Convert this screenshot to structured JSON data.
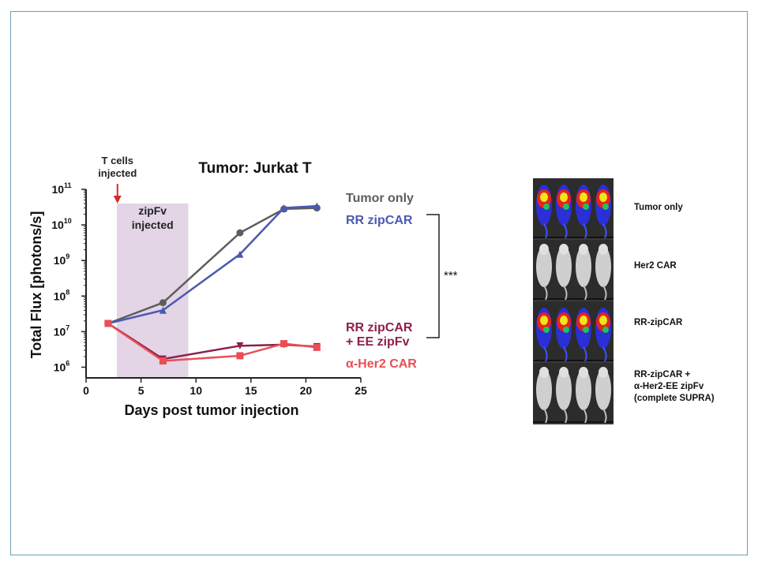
{
  "chart_data": {
    "type": "line",
    "title": "Tumor: Jurkat T",
    "xlabel": "Days post tumor injection",
    "ylabel": "Total Flux [photons/s]",
    "xlim": [
      0,
      25
    ],
    "ylim_log10": [
      5.7,
      11
    ],
    "yscale": "log",
    "x_ticks": [
      "0",
      "5",
      "10",
      "15",
      "20",
      "25"
    ],
    "y_ticks": [
      {
        "base": "10",
        "exp": "11",
        "log": 11
      },
      {
        "base": "10",
        "exp": "10",
        "log": 10
      },
      {
        "base": "10",
        "exp": "9",
        "log": 9
      },
      {
        "base": "10",
        "exp": "8",
        "log": 8
      },
      {
        "base": "10",
        "exp": "7",
        "log": 7
      },
      {
        "base": "10",
        "exp": "6",
        "log": 6
      }
    ],
    "annotations": {
      "tcells": "T cells\ninjected",
      "tcells_day": 3,
      "zipfv": "zipFv\ninjected",
      "zipfv_range": [
        2.8,
        9.3
      ],
      "significance": "***"
    },
    "series": [
      {
        "name": "Tumor only",
        "color": "#5d5d5d",
        "marker": "circle",
        "x": [
          2,
          7,
          14,
          18,
          21
        ],
        "y": [
          17000000.0,
          65000000.0,
          6000000000.0,
          28000000000.0,
          30000000000.0
        ]
      },
      {
        "name": "RR zipCAR",
        "color": "#4a5ab0",
        "marker": "triangle",
        "x": [
          2,
          7,
          14,
          18,
          21
        ],
        "y": [
          17000000.0,
          40000000.0,
          1500000000.0,
          30000000000.0,
          34000000000.0
        ]
      },
      {
        "name": "RR zipCAR\n+ EE zipFv",
        "color": "#8c1f4e",
        "marker": "triangle-down",
        "x": [
          2,
          7,
          14,
          18,
          21
        ],
        "y": [
          17000000.0,
          1700000.0,
          4000000.0,
          4300000.0,
          3800000.0
        ]
      },
      {
        "name": "α-Her2 CAR",
        "color": "#e84f55",
        "marker": "square",
        "x": [
          2,
          7,
          14,
          18,
          21
        ],
        "y": [
          17000000.0,
          1500000.0,
          2100000.0,
          4600000.0,
          3600000.0
        ]
      }
    ]
  },
  "image_panel": {
    "rows": [
      {
        "label": "Tumor only",
        "signal": "tumor"
      },
      {
        "label": "Her2 CAR",
        "signal": "none"
      },
      {
        "label": "RR-zipCAR",
        "signal": "tumor"
      },
      {
        "label": "RR-zipCAR +\nα-Her2-EE zipFv\n(complete SUPRA)",
        "signal": "none"
      }
    ]
  }
}
